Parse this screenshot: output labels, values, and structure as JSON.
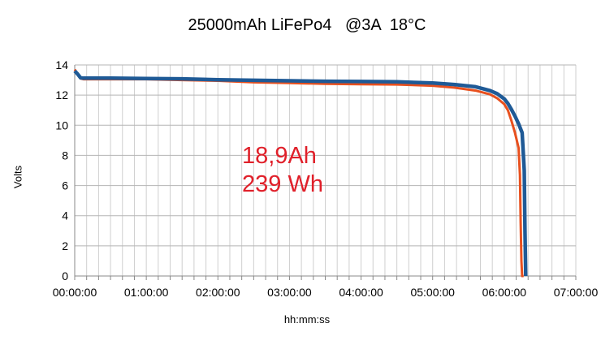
{
  "chart_data": {
    "type": "line",
    "title": "25000mAh LiFePo4   @3A  18°C",
    "xlabel": "hh:mm:ss",
    "ylabel": "Volts",
    "x_unit": "hours",
    "xlim": [
      0,
      7
    ],
    "ylim": [
      0,
      14
    ],
    "x_ticks": [
      "00:00:00",
      "01:00:00",
      "02:00:00",
      "03:00:00",
      "04:00:00",
      "05:00:00",
      "06:00:00",
      "07:00:00"
    ],
    "y_ticks": [
      0,
      2,
      4,
      6,
      8,
      10,
      12,
      14
    ],
    "grid": true,
    "legend": "none",
    "annotations": [
      "18,9Ah",
      "239 Wh"
    ],
    "series": [
      {
        "color": "#e8501e",
        "x": [
          0.0,
          0.04,
          0.08,
          0.12,
          0.5,
          1.0,
          1.5,
          2.0,
          2.5,
          3.0,
          3.5,
          4.0,
          4.5,
          5.0,
          5.3,
          5.6,
          5.8,
          5.9,
          6.0,
          6.05,
          6.1,
          6.15,
          6.2,
          6.22,
          6.23,
          6.24,
          6.25,
          6.27
        ],
        "y": [
          13.7,
          13.4,
          13.1,
          13.05,
          13.05,
          13.05,
          13.0,
          12.95,
          12.85,
          12.8,
          12.75,
          12.72,
          12.7,
          12.62,
          12.5,
          12.3,
          12.05,
          11.8,
          11.4,
          11.0,
          10.3,
          9.5,
          8.5,
          6.7,
          3.5,
          1.0,
          0.0,
          0.0
        ]
      },
      {
        "color": "#1f5a96",
        "x": [
          0.0,
          0.04,
          0.08,
          0.12,
          0.5,
          1.0,
          1.5,
          2.0,
          2.5,
          3.0,
          3.5,
          4.0,
          4.5,
          5.0,
          5.3,
          5.6,
          5.8,
          5.9,
          6.0,
          6.05,
          6.1,
          6.15,
          6.2,
          6.25,
          6.28,
          6.29,
          6.3
        ],
        "y": [
          13.6,
          13.4,
          13.15,
          13.12,
          13.12,
          13.1,
          13.08,
          13.02,
          12.98,
          12.95,
          12.92,
          12.9,
          12.88,
          12.8,
          12.7,
          12.55,
          12.3,
          12.1,
          11.75,
          11.45,
          11.05,
          10.6,
          10.1,
          9.5,
          7.0,
          3.0,
          0.0
        ]
      }
    ]
  }
}
